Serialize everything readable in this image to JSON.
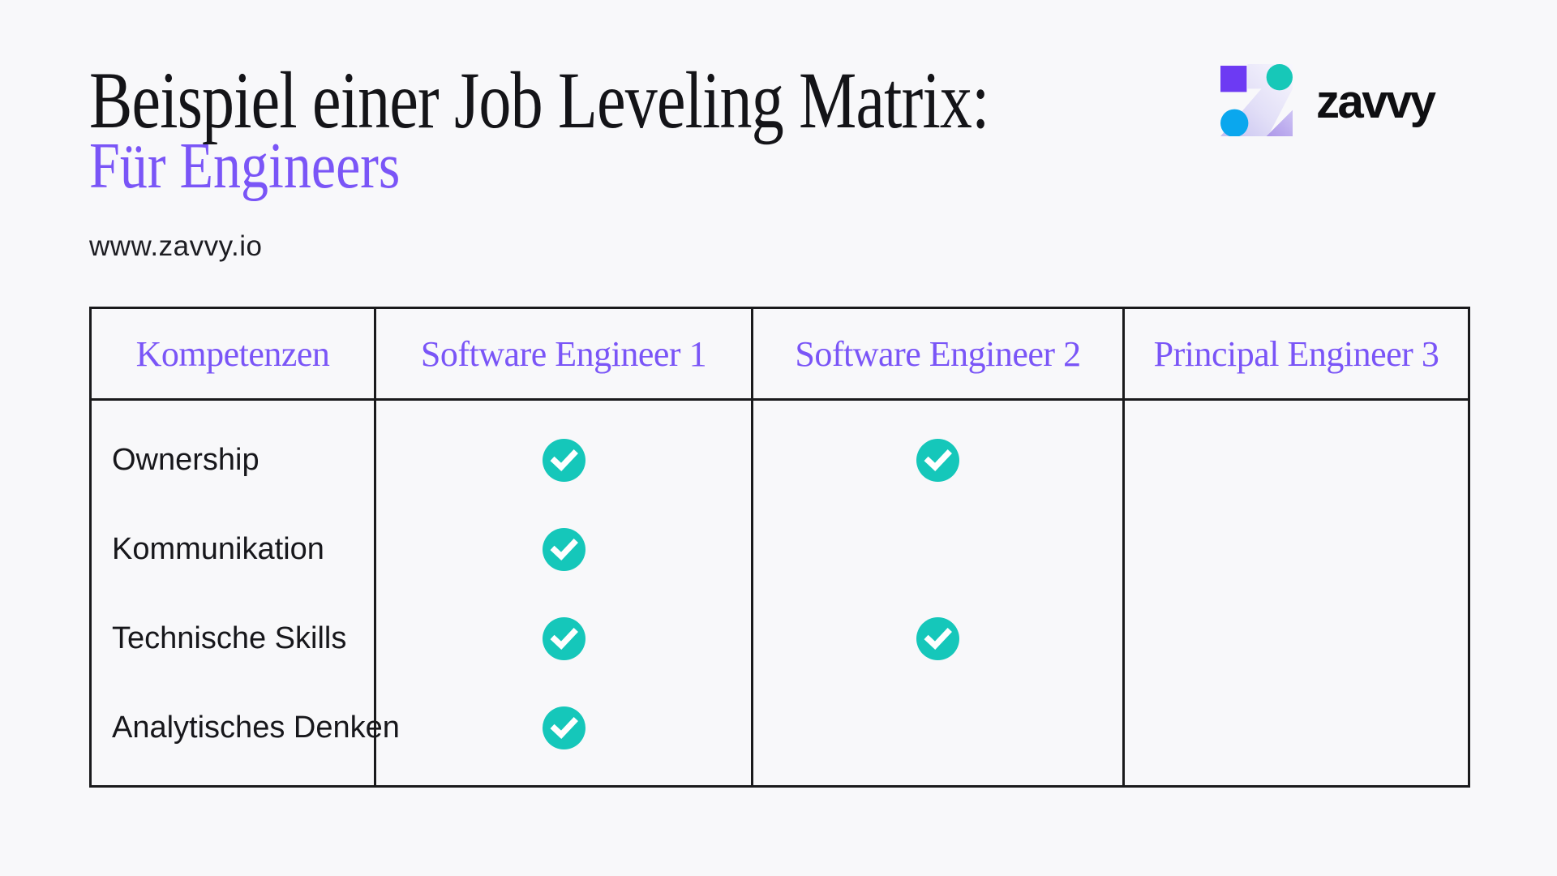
{
  "page": {
    "background": "#F8F8FA",
    "accent_purple": "#7A55F7",
    "ink": "#16161A",
    "border_color": "#1A1A1C"
  },
  "header": {
    "title": "Beispiel einer Job Leveling Matrix:",
    "subtitle": "Für Engineers",
    "website": "www.zavvy.io"
  },
  "logo": {
    "wordmark": "zavvy",
    "mark_shapes": [
      "purple-square",
      "teal-circle",
      "gradient-z",
      "blue-circle",
      "lavender-triangle"
    ],
    "colors": {
      "purple": "#6D3AF3",
      "teal": "#17C8B8",
      "blue": "#0AA7EE",
      "lavender": "#B5A1EC",
      "ink": "#0F0F12"
    }
  },
  "table": {
    "columns": [
      "Kompetenzen",
      "Software Engineer 1",
      "Software Engineer 2",
      "Principal Engineer 3"
    ],
    "rows": [
      {
        "label": "Ownership",
        "checks": [
          true,
          true,
          false
        ]
      },
      {
        "label": "Kommunikation",
        "checks": [
          true,
          false,
          false
        ]
      },
      {
        "label": "Technische Skills",
        "checks": [
          true,
          true,
          false
        ]
      },
      {
        "label": "Analytisches Denken",
        "checks": [
          true,
          false,
          false
        ]
      }
    ],
    "check_icon": "check-circle-icon",
    "check_color": "#15C7BA",
    "check_mark_color": "#FFFFFF"
  }
}
